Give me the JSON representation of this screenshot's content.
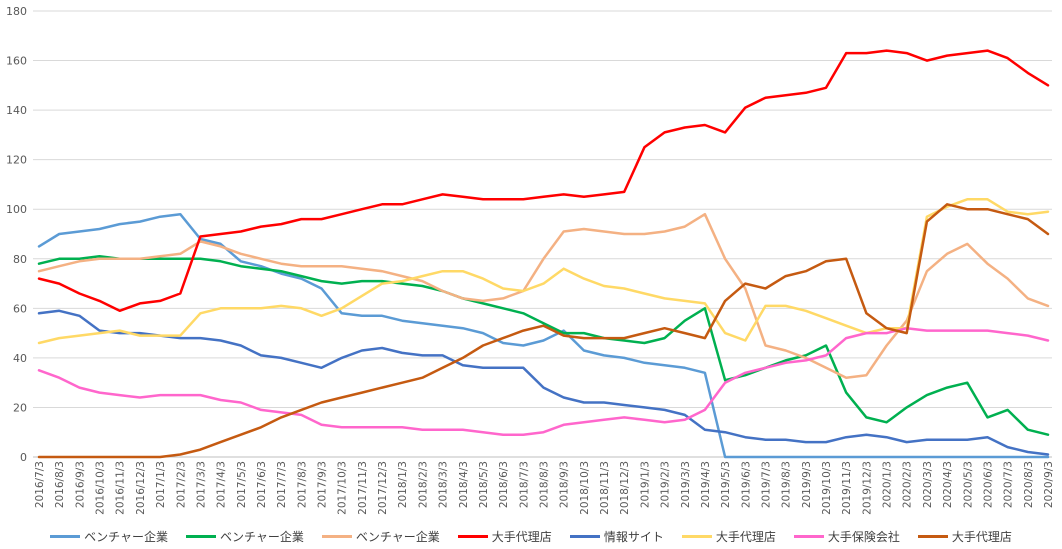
{
  "chart_data": {
    "type": "line",
    "title": "",
    "xlabel": "",
    "ylabel": "",
    "ylim": [
      0,
      180
    ],
    "yticks": [
      0,
      20,
      40,
      60,
      80,
      100,
      120,
      140,
      160,
      180
    ],
    "grid": true,
    "legend_position": "bottom",
    "categories": [
      "2016/7/3",
      "2016/8/3",
      "2016/9/3",
      "2016/10/3",
      "2016/11/3",
      "2016/12/3",
      "2017/1/3",
      "2017/2/3",
      "2017/3/3",
      "2017/4/3",
      "2017/5/3",
      "2017/6/3",
      "2017/7/3",
      "2017/8/3",
      "2017/9/3",
      "2017/10/3",
      "2017/11/3",
      "2017/12/3",
      "2018/1/3",
      "2018/2/3",
      "2018/3/3",
      "2018/4/3",
      "2018/5/3",
      "2018/6/3",
      "2018/7/3",
      "2018/8/3",
      "2018/9/3",
      "2018/10/3",
      "2018/11/3",
      "2018/12/3",
      "2019/1/3",
      "2019/2/3",
      "2019/3/3",
      "2019/4/3",
      "2019/5/3",
      "2019/6/3",
      "2019/7/3",
      "2019/8/3",
      "2019/9/3",
      "2019/10/3",
      "2019/11/3",
      "2019/12/3",
      "2020/1/3",
      "2020/2/3",
      "2020/3/3",
      "2020/4/3",
      "2020/5/3",
      "2020/6/3",
      "2020/7/3",
      "2020/8/3",
      "2020/9/3"
    ],
    "series": [
      {
        "name": "ベンチャー企業",
        "color": "#5b9bd5",
        "values": [
          85,
          90,
          91,
          92,
          94,
          95,
          97,
          98,
          88,
          86,
          79,
          77,
          74,
          72,
          68,
          58,
          57,
          57,
          55,
          54,
          53,
          52,
          50,
          46,
          45,
          47,
          51,
          43,
          41,
          40,
          38,
          37,
          36,
          34,
          0,
          0,
          0,
          0,
          0,
          0,
          0,
          0,
          0,
          0,
          0,
          0,
          0,
          0,
          0,
          0,
          0
        ]
      },
      {
        "name": "ベンチャー企業",
        "color": "#00b050",
        "values": [
          78,
          80,
          80,
          81,
          80,
          80,
          80,
          80,
          80,
          79,
          77,
          76,
          75,
          73,
          71,
          70,
          71,
          71,
          70,
          69,
          67,
          64,
          62,
          60,
          58,
          54,
          50,
          50,
          48,
          47,
          46,
          48,
          55,
          60,
          31,
          33,
          36,
          39,
          41,
          45,
          26,
          16,
          14,
          20,
          25,
          28,
          30,
          16,
          19,
          11,
          9
        ]
      },
      {
        "name": "ベンチャー企業",
        "color": "#f4b183",
        "values": [
          75,
          77,
          79,
          80,
          80,
          80,
          81,
          82,
          87,
          85,
          82,
          80,
          78,
          77,
          77,
          77,
          76,
          75,
          73,
          71,
          67,
          64,
          63,
          64,
          67,
          80,
          91,
          92,
          91,
          90,
          90,
          91,
          93,
          98,
          80,
          68,
          45,
          43,
          40,
          36,
          32,
          33,
          45,
          55,
          75,
          82,
          86,
          78,
          72,
          64,
          61
        ]
      },
      {
        "name": "大手代理店",
        "color": "#ff0000",
        "values": [
          72,
          70,
          66,
          63,
          59,
          62,
          63,
          66,
          89,
          90,
          91,
          93,
          94,
          96,
          96,
          98,
          100,
          102,
          102,
          104,
          106,
          105,
          104,
          104,
          104,
          105,
          106,
          105,
          106,
          107,
          125,
          131,
          133,
          134,
          131,
          141,
          145,
          146,
          147,
          149,
          163,
          163,
          164,
          163,
          160,
          162,
          163,
          164,
          161,
          155,
          150
        ]
      },
      {
        "name": "情報サイト",
        "color": "#4472c4",
        "values": [
          58,
          59,
          57,
          51,
          50,
          50,
          49,
          48,
          48,
          47,
          45,
          41,
          40,
          38,
          36,
          40,
          43,
          44,
          42,
          41,
          41,
          37,
          36,
          36,
          36,
          28,
          24,
          22,
          22,
          21,
          20,
          19,
          17,
          11,
          10,
          8,
          7,
          7,
          6,
          6,
          8,
          9,
          8,
          6,
          7,
          7,
          7,
          8,
          4,
          2,
          1
        ]
      },
      {
        "name": "大手代理店",
        "color": "#ffd966",
        "values": [
          46,
          48,
          49,
          50,
          51,
          49,
          49,
          49,
          58,
          60,
          60,
          60,
          61,
          60,
          57,
          60,
          65,
          70,
          71,
          73,
          75,
          75,
          72,
          68,
          67,
          70,
          76,
          72,
          69,
          68,
          66,
          64,
          63,
          62,
          50,
          47,
          61,
          61,
          59,
          56,
          53,
          50,
          52,
          52,
          97,
          101,
          104,
          104,
          99,
          98,
          99
        ]
      },
      {
        "name": "大手保険会社",
        "color": "#ff66cc",
        "values": [
          35,
          32,
          28,
          26,
          25,
          24,
          25,
          25,
          25,
          23,
          22,
          19,
          18,
          17,
          13,
          12,
          12,
          12,
          12,
          11,
          11,
          11,
          10,
          9,
          9,
          10,
          13,
          14,
          15,
          16,
          15,
          14,
          15,
          19,
          30,
          34,
          36,
          38,
          39,
          41,
          48,
          50,
          50,
          52,
          51,
          51,
          51,
          51,
          50,
          49,
          47
        ]
      },
      {
        "name": "大手代理店",
        "color": "#c55a11",
        "values": [
          0,
          0,
          0,
          0,
          0,
          0,
          0,
          1,
          3,
          6,
          9,
          12,
          16,
          19,
          22,
          24,
          26,
          28,
          30,
          32,
          36,
          40,
          45,
          48,
          51,
          53,
          49,
          48,
          48,
          48,
          50,
          52,
          50,
          48,
          63,
          70,
          68,
          73,
          75,
          79,
          80,
          58,
          52,
          50,
          95,
          102,
          100,
          100,
          98,
          96,
          90
        ]
      }
    ]
  }
}
